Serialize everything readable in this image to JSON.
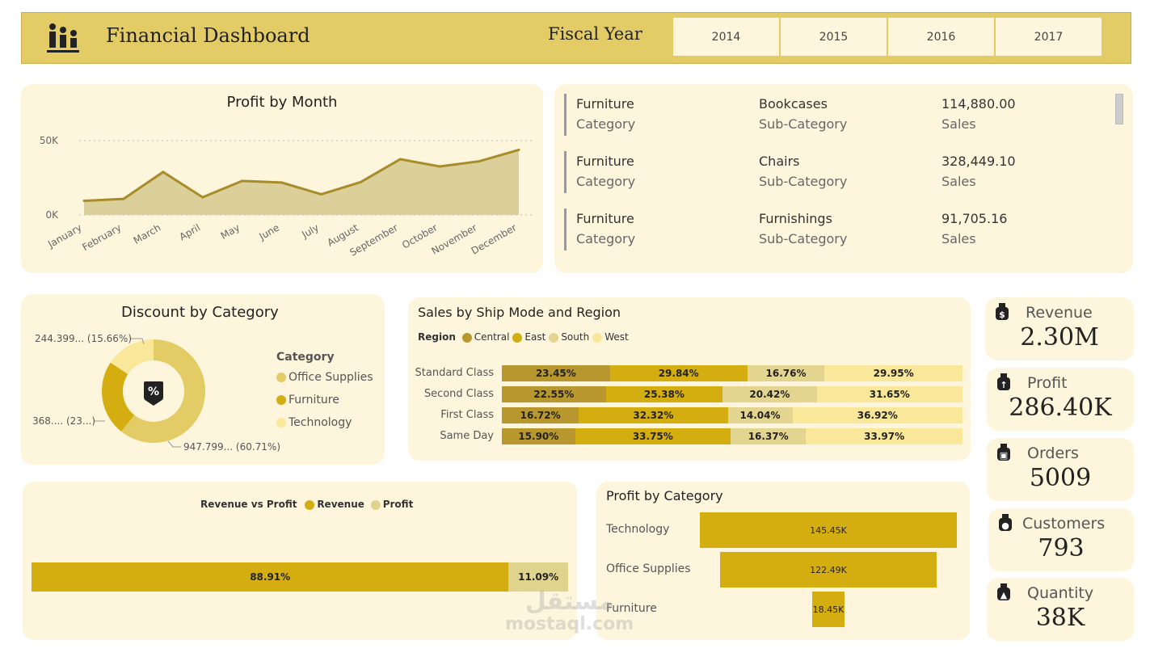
{
  "header": {
    "title": "Financial Dashboard",
    "fiscal_label": "Fiscal Year",
    "years": [
      "2014",
      "2015",
      "2016",
      "2017"
    ],
    "logo_icon": "bar-people-icon"
  },
  "profit_by_month": {
    "title": "Profit by Month",
    "y_ticks": [
      "50K",
      "0K"
    ]
  },
  "subcategory_table": {
    "rows": [
      {
        "category": "Furniture",
        "category_label": "Category",
        "subcategory": "Bookcases",
        "subcategory_label": "Sub-Category",
        "sales": "114,880.00",
        "sales_label": "Sales"
      },
      {
        "category": "Furniture",
        "category_label": "Category",
        "subcategory": "Chairs",
        "subcategory_label": "Sub-Category",
        "sales": "328,449.10",
        "sales_label": "Sales"
      },
      {
        "category": "Furniture",
        "category_label": "Category",
        "subcategory": "Furnishings",
        "subcategory_label": "Sub-Category",
        "sales": "91,705.16",
        "sales_label": "Sales"
      }
    ]
  },
  "discount": {
    "title": "Discount by Category",
    "legend_title": "Category",
    "center_icon": "discount-tag-icon",
    "labels": {
      "office": "947.799... (60.71%)",
      "furniture": "368.... (23...)",
      "technology": "244.399... (15.66%)"
    }
  },
  "ship_mode": {
    "title": "Sales by Ship Mode and Region",
    "legend_title": "Region"
  },
  "kpis": [
    {
      "label": "Revenue",
      "value": "2.30M",
      "icon": "money-bag-icon"
    },
    {
      "label": "Profit",
      "value": "286.40K",
      "icon": "profit-chart-icon"
    },
    {
      "label": "Orders",
      "value": "5009",
      "icon": "shopping-cart-icon"
    },
    {
      "label": "Customers",
      "value": "793",
      "icon": "customers-icon"
    },
    {
      "label": "Quantity",
      "value": "38K",
      "icon": "boxes-icon"
    }
  ],
  "revenue_vs_profit": {
    "title": "Revenue vs Profit"
  },
  "profit_by_category": {
    "title": "Profit by Category"
  },
  "watermark": {
    "arabic": "مستقل",
    "latin": "mostaql.com"
  },
  "colors": {
    "header": "#e3cb66",
    "card": "#fdf6dd",
    "central": "#b8982e",
    "east": "#d4ae10",
    "south": "#e3d48f",
    "west": "#f9e79a",
    "revenue": "#d4ae10",
    "profit": "#e0d38e",
    "area_fill": "#dcd09a",
    "area_line": "#a88c2a"
  },
  "chart_data": [
    {
      "type": "area",
      "title": "Profit by Month",
      "categories": [
        "January",
        "February",
        "March",
        "April",
        "May",
        "June",
        "July",
        "August",
        "September",
        "October",
        "November",
        "December"
      ],
      "values": [
        9500,
        10800,
        28900,
        11900,
        22900,
        21800,
        13900,
        22100,
        37500,
        32600,
        36100,
        43800
      ],
      "ylim": [
        0,
        50000
      ]
    },
    {
      "type": "pie",
      "title": "Discount by Category",
      "categories": [
        "Office Supplies",
        "Furniture",
        "Technology"
      ],
      "values": [
        947.799,
        368.0,
        244.399
      ],
      "percent": [
        60.71,
        23.63,
        15.66
      ]
    },
    {
      "type": "bar",
      "title": "Sales by Ship Mode and Region",
      "categories": [
        "Standard Class",
        "Second Class",
        "First Class",
        "Same Day"
      ],
      "series": [
        {
          "name": "Central",
          "values": [
            23.45,
            22.55,
            16.72,
            15.9
          ]
        },
        {
          "name": "East",
          "values": [
            29.84,
            25.38,
            32.32,
            33.75
          ]
        },
        {
          "name": "South",
          "values": [
            16.76,
            20.42,
            14.04,
            16.37
          ]
        },
        {
          "name": "West",
          "values": [
            29.95,
            31.65,
            36.92,
            33.97
          ]
        }
      ],
      "stacked_100": true
    },
    {
      "type": "bar",
      "title": "Revenue vs Profit",
      "categories": [
        ""
      ],
      "series": [
        {
          "name": "Revenue",
          "values": [
            88.91
          ]
        },
        {
          "name": "Profit",
          "values": [
            11.09
          ]
        }
      ],
      "stacked_100": true
    },
    {
      "type": "bar",
      "title": "Profit by Category",
      "categories": [
        "Technology",
        "Office Supplies",
        "Furniture"
      ],
      "values": [
        145.45,
        122.49,
        18.45
      ],
      "value_labels": [
        "145.45K",
        "122.49K",
        "18.45K"
      ],
      "layout": "funnel"
    }
  ]
}
